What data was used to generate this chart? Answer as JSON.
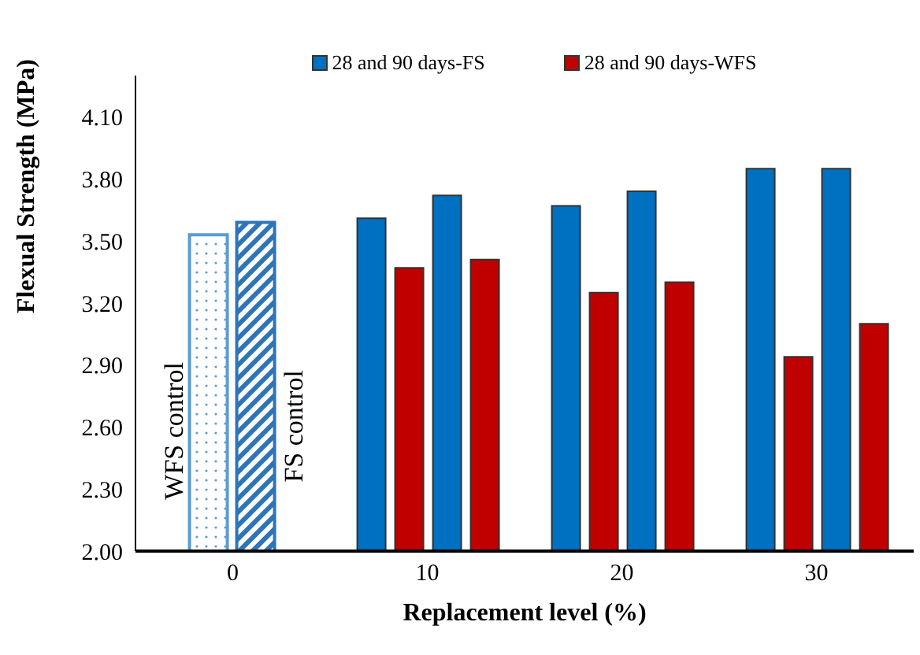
{
  "chart_data": {
    "type": "bar",
    "xlabel": "Replacement level (%)",
    "ylabel": "Flexual Strength (MPa)",
    "categories": [
      "0",
      "10",
      "20",
      "30"
    ],
    "series": [
      {
        "name": "WFS control",
        "color": "#5b9bd5",
        "values": [
          3.53,
          null,
          null,
          null
        ]
      },
      {
        "name": "FS control",
        "color": "#2e75b6",
        "values": [
          3.59,
          null,
          null,
          null
        ]
      },
      {
        "name": "28 and 90 days-FS",
        "color": "#0070c0",
        "values": [
          null,
          3.61,
          3.67,
          3.85
        ]
      },
      {
        "name": "28 and 90 days-WFS",
        "color": "#c00000",
        "values": [
          null,
          3.37,
          3.25,
          2.94
        ]
      },
      {
        "color": "#0070c0",
        "values": [
          null,
          3.72,
          3.74,
          3.85
        ]
      },
      {
        "color": "#c00000",
        "values": [
          null,
          3.41,
          3.3,
          3.1
        ]
      }
    ],
    "ylim": [
      2.0,
      4.3
    ],
    "yticks": [
      {
        "value": 2.0,
        "label": "2.00"
      },
      {
        "value": 2.3,
        "label": "2.30"
      },
      {
        "value": 2.6,
        "label": "2.60"
      },
      {
        "value": 2.9,
        "label": "2.90"
      },
      {
        "value": 3.2,
        "label": "3.20"
      },
      {
        "value": 3.5,
        "label": "3.50"
      },
      {
        "value": 3.8,
        "label": "3.80"
      },
      {
        "value": 4.1,
        "label": "4.10"
      }
    ],
    "grid": false,
    "legend": "top"
  }
}
